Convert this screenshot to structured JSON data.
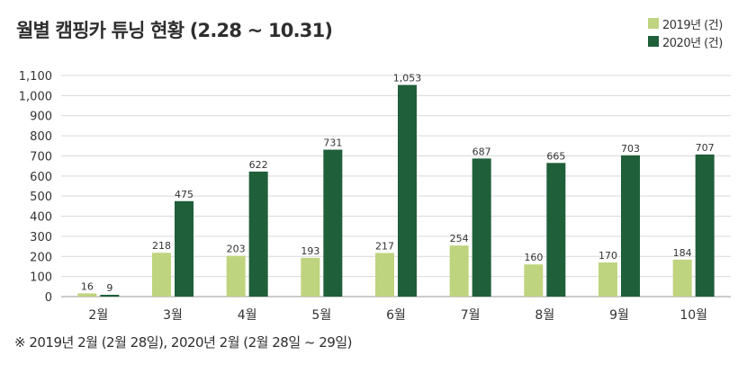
{
  "chart_data": {
    "type": "bar",
    "title": "월별 캠핑카 튜닝 현황 (2.28 ~ 10.31)",
    "xlabel": "",
    "ylabel": "",
    "ylim": [
      0,
      1100
    ],
    "yticks": [
      "0",
      "100",
      "200",
      "300",
      "400",
      "500",
      "600",
      "700",
      "800",
      "900",
      "1,000",
      "1,100"
    ],
    "categories": [
      "2월",
      "3월",
      "4월",
      "5월",
      "6월",
      "7월",
      "8월",
      "9월",
      "10월"
    ],
    "series": [
      {
        "name": "2019년 (건)",
        "color": "#bfd47f",
        "values": [
          16,
          218,
          203,
          193,
          217,
          254,
          160,
          170,
          184
        ],
        "labels": [
          "16",
          "218",
          "203",
          "193",
          "217",
          "254",
          "160",
          "170",
          "184"
        ]
      },
      {
        "name": "2020년 (건)",
        "color": "#1f5f3a",
        "values": [
          9,
          475,
          622,
          731,
          1053,
          687,
          665,
          703,
          707
        ],
        "labels": [
          "9",
          "475",
          "622",
          "731",
          "1,053",
          "687",
          "665",
          "703",
          "707"
        ]
      }
    ],
    "grid": true,
    "legend_position": "top-right",
    "footnote": "※ 2019년 2월 (2월 28일), 2020년 2월 (2월 28일 ~ 29일)"
  }
}
